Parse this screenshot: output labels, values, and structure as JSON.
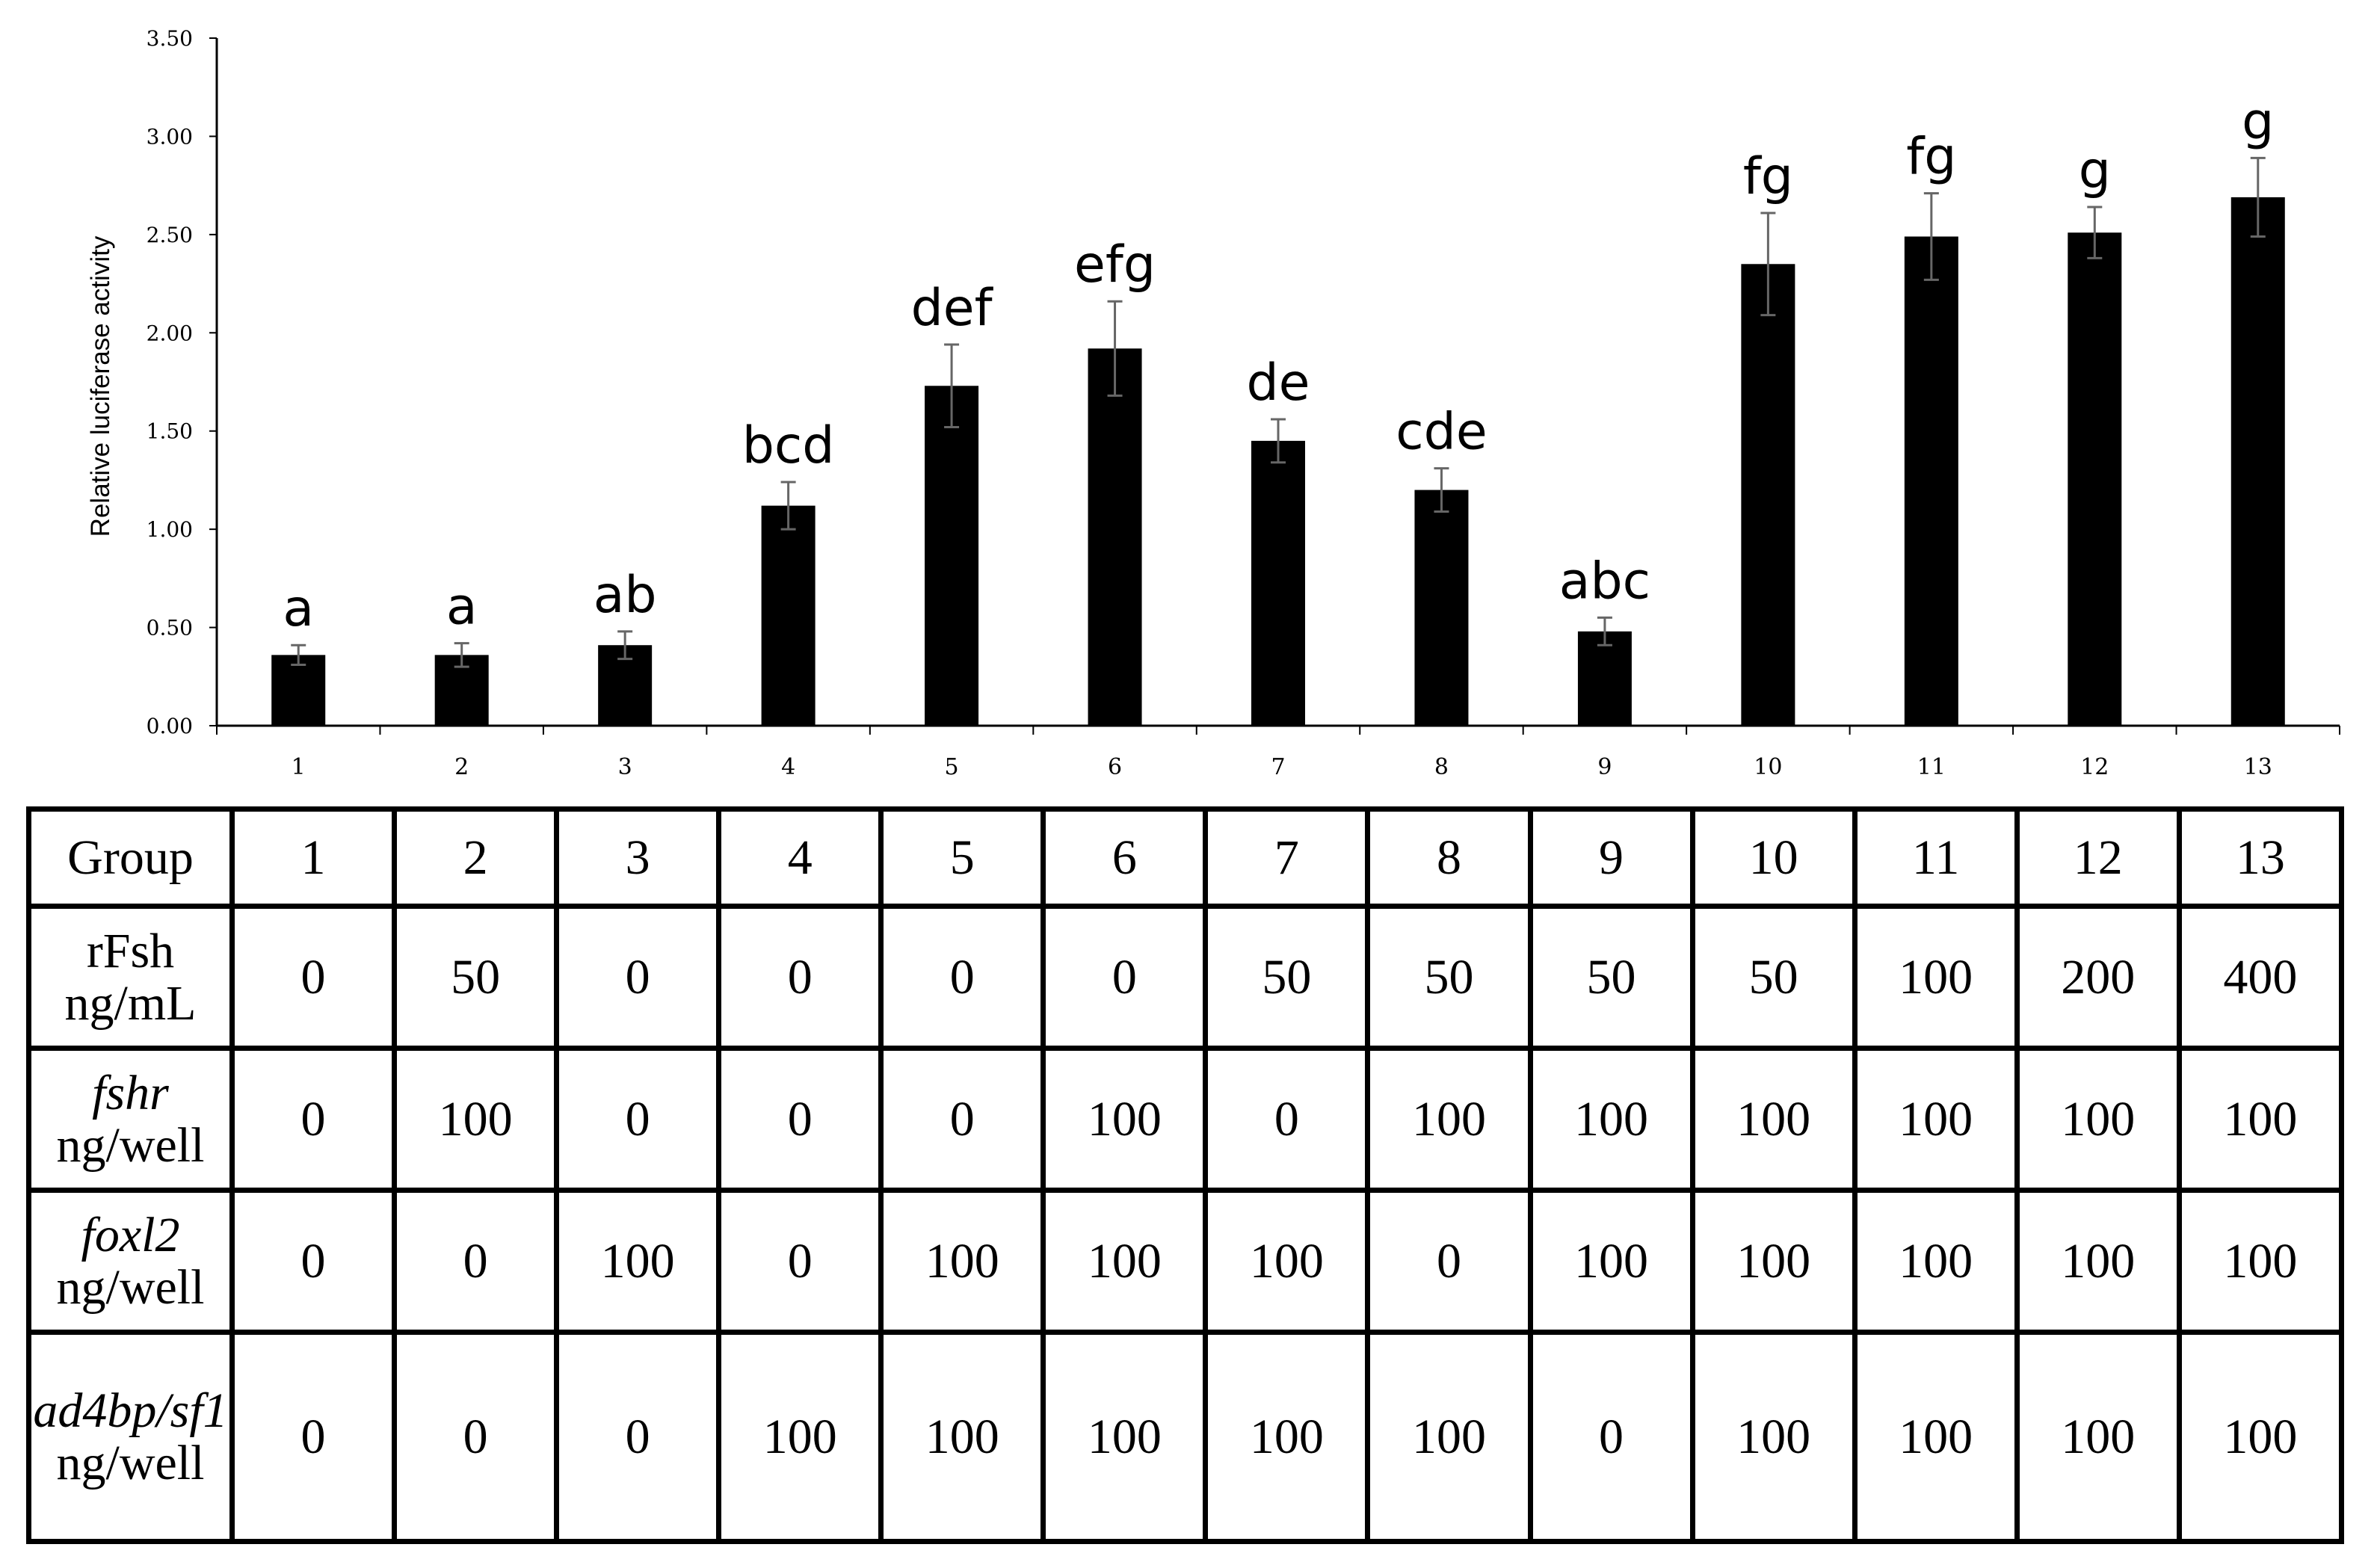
{
  "chart_data": {
    "type": "bar",
    "title": "",
    "xlabel": "",
    "ylabel": "Relative luciferase activity",
    "ylim": [
      0,
      3.5
    ],
    "yticks": [
      "0.00",
      "0.50",
      "1.00",
      "1.50",
      "2.00",
      "2.50",
      "3.00",
      "3.50"
    ],
    "categories": [
      "1",
      "2",
      "3",
      "4",
      "5",
      "6",
      "7",
      "8",
      "9",
      "10",
      "11",
      "12",
      "13"
    ],
    "values": [
      0.36,
      0.36,
      0.41,
      1.12,
      1.73,
      1.92,
      1.45,
      1.2,
      0.48,
      2.35,
      2.49,
      2.51,
      2.69
    ],
    "errors": [
      0.05,
      0.06,
      0.07,
      0.12,
      0.21,
      0.24,
      0.11,
      0.11,
      0.07,
      0.26,
      0.22,
      0.13,
      0.2
    ],
    "significance_labels": [
      "a",
      "a",
      "ab",
      "bcd",
      "def",
      "efg",
      "de",
      "cde",
      "abc",
      "fg",
      "fg",
      "g",
      "g"
    ],
    "bar_color": "#000000"
  },
  "table": {
    "group_header": "Group",
    "groups": [
      "1",
      "2",
      "3",
      "4",
      "5",
      "6",
      "7",
      "8",
      "9",
      "10",
      "11",
      "12",
      "13"
    ],
    "rows": [
      {
        "name": "rFsh",
        "unit": "ng/mL",
        "values": [
          "0",
          "50",
          "0",
          "0",
          "0",
          "0",
          "50",
          "50",
          "50",
          "50",
          "100",
          "200",
          "400"
        ]
      },
      {
        "name": "fshr",
        "unit": "ng/well",
        "values": [
          "0",
          "100",
          "0",
          "0",
          "0",
          "100",
          "0",
          "100",
          "100",
          "100",
          "100",
          "100",
          "100"
        ]
      },
      {
        "name": "foxl2",
        "unit": "ng/well",
        "values": [
          "0",
          "0",
          "100",
          "0",
          "100",
          "100",
          "100",
          "0",
          "100",
          "100",
          "100",
          "100",
          "100"
        ]
      },
      {
        "name": "ad4bp/sf1",
        "unit": "ng/well",
        "values": [
          "0",
          "0",
          "0",
          "100",
          "100",
          "100",
          "100",
          "100",
          "0",
          "100",
          "100",
          "100",
          "100"
        ]
      }
    ]
  }
}
